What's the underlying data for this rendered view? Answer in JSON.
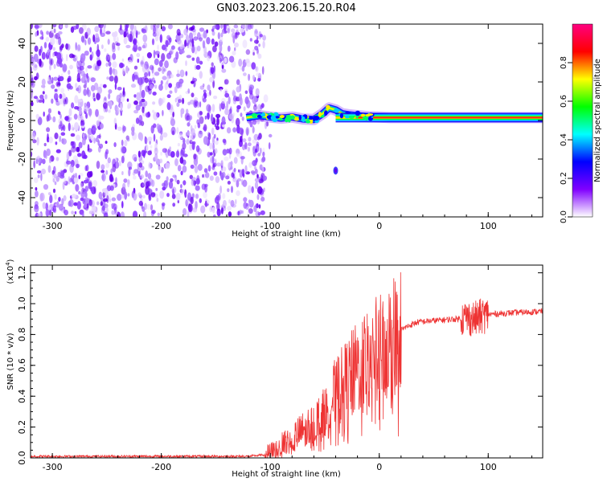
{
  "title": "GN03.2023.206.15.20.R04",
  "chart_data": [
    {
      "type": "heatmap",
      "title": "",
      "xlabel": "Height of straight line (km)",
      "ylabel": "Frequency (Hz)",
      "xlim": [
        -320,
        150
      ],
      "ylim": [
        -50,
        50
      ],
      "xticks": [
        -300,
        -200,
        -100,
        0,
        100
      ],
      "yticks": [
        -40,
        -20,
        0,
        20,
        40
      ],
      "xtick_labels": [
        "-300",
        "-200",
        "-100",
        "0",
        "100"
      ],
      "ytick_labels": [
        "-40",
        "-20",
        "0",
        "20",
        "40"
      ],
      "noise_region_x": [
        -320,
        -105
      ],
      "signal_track": {
        "x": [
          -122,
          -110,
          -100,
          -90,
          -80,
          -70,
          -60,
          -52,
          -46,
          -40,
          -34,
          -28,
          -20,
          -10,
          0,
          10,
          20,
          40,
          60,
          80,
          100,
          120,
          150
        ],
        "frequency": [
          1.5,
          2.5,
          1.8,
          1.2,
          1.8,
          0.8,
          0.5,
          3.5,
          6.5,
          5.5,
          3.5,
          3.0,
          2.5,
          2.0,
          1.8,
          1.5,
          1.5,
          1.5,
          1.5,
          1.5,
          1.5,
          1.5,
          1.5
        ]
      },
      "colorbar": {
        "label": "Normalized spectral amplitude",
        "range": [
          0.0,
          1.0
        ],
        "ticks": [
          0.0,
          0.2,
          0.4,
          0.6,
          0.8
        ],
        "tick_labels": [
          "0.0",
          "0.2",
          "0.4",
          "0.6",
          "0.8"
        ],
        "colors": [
          "#ffffff",
          "#8000ff",
          "#0000ff",
          "#00ffff",
          "#00ff00",
          "#ffff00",
          "#ff0000",
          "#ff0080"
        ]
      }
    },
    {
      "type": "line",
      "title": "",
      "xlabel": "Height of straight line (km)",
      "ylabel": "SNR (10 * v/v)",
      "yscale_label": "(x10",
      "yscale_exp": "4",
      "xlim": [
        -320,
        150
      ],
      "ylim": [
        0,
        1.25
      ],
      "xticks": [
        -300,
        -200,
        -100,
        0,
        100
      ],
      "yticks": [
        0.0,
        0.2,
        0.4,
        0.6,
        0.8,
        1.0,
        1.2
      ],
      "xtick_labels": [
        "-300",
        "-200",
        "-100",
        "0",
        "100"
      ],
      "ytick_labels": [
        "0.0",
        "0.2",
        "0.4",
        "0.6",
        "0.8",
        "1.0",
        "1.2"
      ],
      "color": "#ee3333",
      "series": [
        {
          "x": [
            -320,
            -250,
            -200,
            -150,
            -120,
            -105,
            -95,
            -85,
            -75,
            -65,
            -55,
            -48,
            -42,
            -36,
            -30,
            -24,
            -18,
            -12,
            -6,
            0,
            6,
            12,
            18,
            25,
            35,
            50,
            70,
            80,
            88,
            95,
            100,
            120,
            150
          ],
          "values": [
            0.01,
            0.01,
            0.01,
            0.01,
            0.01,
            0.02,
            0.05,
            0.1,
            0.15,
            0.2,
            0.25,
            0.3,
            0.4,
            0.45,
            0.5,
            0.55,
            0.6,
            0.65,
            0.68,
            0.7,
            0.72,
            0.78,
            0.82,
            0.85,
            0.88,
            0.89,
            0.9,
            0.91,
            0.9,
            0.92,
            0.93,
            0.94,
            0.95
          ]
        }
      ]
    }
  ]
}
